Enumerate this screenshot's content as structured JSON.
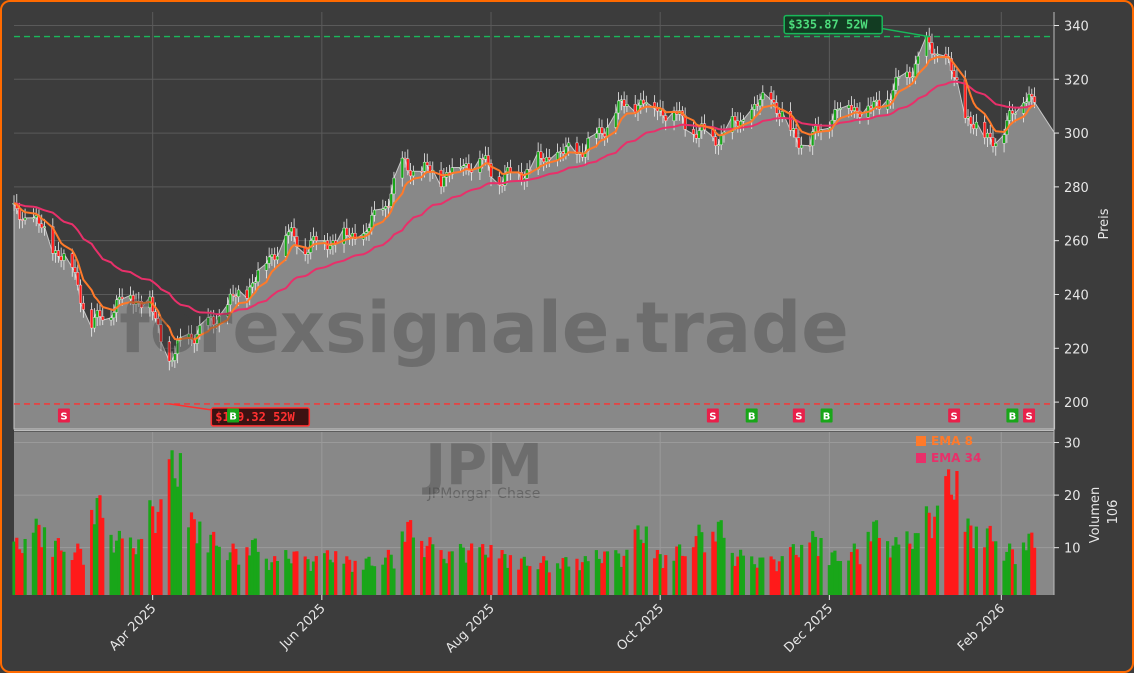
{
  "chart_data": [
    {
      "type": "candlestick",
      "ticker": "JPM",
      "ticker_sub": "JPMorgan Chase",
      "watermark": "forexsignale.trade",
      "ylabel": "Preis",
      "ylim": [
        190,
        345
      ],
      "yticks": [
        200,
        220,
        240,
        260,
        280,
        300,
        320,
        340
      ],
      "xticks": [
        "Apr 2025",
        "Jun 2025",
        "Aug 2025",
        "Oct 2025",
        "Dec 2025",
        "Feb 2026"
      ],
      "xtick_dates": [
        "2025-04-01",
        "2025-06-01",
        "2025-08-01",
        "2025-10-01",
        "2025-12-01",
        "2026-02-01"
      ],
      "x_range": [
        "2025-02-10",
        "2026-02-20"
      ],
      "close_series": {
        "dates": [
          "2025-02-10",
          "2025-02-17",
          "2025-02-24",
          "2025-03-03",
          "2025-03-10",
          "2025-03-17",
          "2025-03-24",
          "2025-03-31",
          "2025-04-07",
          "2025-04-14",
          "2025-04-21",
          "2025-04-28",
          "2025-05-05",
          "2025-05-12",
          "2025-05-19",
          "2025-05-26",
          "2025-06-02",
          "2025-06-09",
          "2025-06-16",
          "2025-06-23",
          "2025-06-30",
          "2025-07-07",
          "2025-07-14",
          "2025-07-21",
          "2025-07-28",
          "2025-08-04",
          "2025-08-11",
          "2025-08-18",
          "2025-08-25",
          "2025-09-01",
          "2025-09-08",
          "2025-09-15",
          "2025-09-22",
          "2025-09-29",
          "2025-10-06",
          "2025-10-13",
          "2025-10-20",
          "2025-10-27",
          "2025-11-03",
          "2025-11-10",
          "2025-11-17",
          "2025-11-24",
          "2025-12-01",
          "2025-12-08",
          "2025-12-15",
          "2025-12-22",
          "2025-12-29",
          "2026-01-05",
          "2026-01-12",
          "2026-01-19",
          "2026-01-26",
          "2026-02-02",
          "2026-02-09",
          "2026-02-13"
        ],
        "close": [
          270,
          268,
          258,
          250,
          228,
          235,
          240,
          236,
          215,
          225,
          228,
          236,
          242,
          252,
          262,
          258,
          260,
          261,
          262,
          272,
          288,
          286,
          284,
          288,
          290,
          283,
          285,
          289,
          292,
          293,
          298,
          308,
          312,
          310,
          307,
          301,
          298,
          302,
          308,
          314,
          300,
          296,
          306,
          311,
          308,
          313,
          322,
          332,
          328,
          308,
          298,
          300,
          315,
          311
        ]
      },
      "series": [
        {
          "name": "EMA 8",
          "color": "#ff7a2a"
        },
        {
          "name": "EMA 34",
          "color": "#e8306a"
        }
      ],
      "annotations": [
        {
          "label": "$335.87 52W",
          "value": 335.87,
          "date": "2026-01-06",
          "color": "#19b85a"
        },
        {
          "label": "$199.32 52W",
          "value": 199.32,
          "date": "2025-04-07",
          "color": "#ff3030"
        }
      ],
      "signals": [
        {
          "type": "S",
          "date": "2025-02-28"
        },
        {
          "type": "B",
          "date": "2025-04-30"
        },
        {
          "type": "S",
          "date": "2025-10-20"
        },
        {
          "type": "B",
          "date": "2025-11-03"
        },
        {
          "type": "S",
          "date": "2025-11-20"
        },
        {
          "type": "B",
          "date": "2025-11-30"
        },
        {
          "type": "S",
          "date": "2026-01-15"
        },
        {
          "type": "B",
          "date": "2026-02-05"
        },
        {
          "type": "S",
          "date": "2026-02-11"
        }
      ],
      "colors": {
        "background": "#3c3c3c",
        "area": "#888888",
        "frame": "#ff6a00",
        "up": "#19a619",
        "down": "#ff1a1a"
      }
    },
    {
      "type": "bar",
      "ylabel": "Volumen",
      "yunit": "10^6",
      "yticks": [
        10,
        20,
        30
      ],
      "ylim": [
        1,
        32
      ],
      "volume_weekly": [
        10,
        13,
        10,
        9,
        17,
        11,
        10,
        16,
        24,
        14,
        11,
        9,
        10,
        7,
        8,
        7,
        8,
        7,
        7,
        8,
        13,
        10,
        8,
        9,
        9,
        8,
        7,
        7,
        7,
        7,
        8,
        8,
        12,
        8,
        9,
        12,
        13,
        8,
        7,
        7,
        9,
        11,
        8,
        9,
        13,
        10,
        11,
        15,
        21,
        13,
        12,
        9,
        11,
        11
      ]
    }
  ]
}
